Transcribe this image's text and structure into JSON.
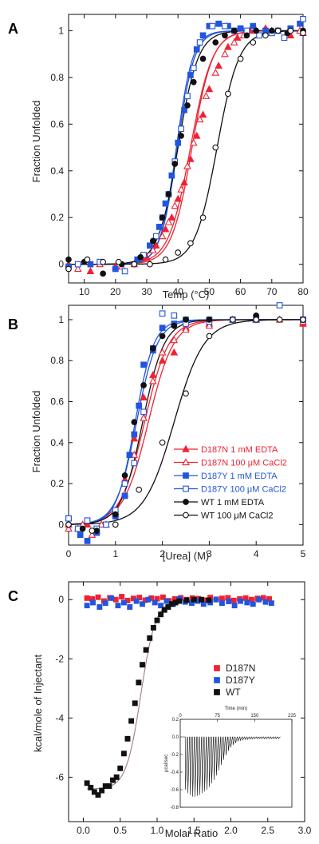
{
  "colors": {
    "red": "#ee2233",
    "blue": "#2255dd",
    "black": "#111111",
    "fit_gray": "#a07a88"
  },
  "chart_data": [
    {
      "panel": "A",
      "type": "scatter",
      "xlabel": "Temp (°C)",
      "ylabel": "Fraction Unfolded",
      "xlim": [
        5,
        80
      ],
      "ylim": [
        -0.08,
        1.07
      ],
      "xticks": [
        10,
        20,
        30,
        40,
        50,
        60,
        70,
        80
      ],
      "yticks": [
        0,
        0.2,
        0.4,
        0.6,
        0.8,
        1
      ],
      "series": [
        {
          "color": "red",
          "marker": "triangle",
          "fill": true,
          "tm": 44.5,
          "w": 3.3,
          "x": [
            5,
            12,
            20,
            26,
            30,
            33,
            36,
            38,
            40,
            42,
            44,
            46,
            48,
            50,
            53,
            56,
            59,
            63,
            68,
            72,
            76,
            80
          ],
          "y": [
            0.0,
            -0.03,
            -0.01,
            0.0,
            0.03,
            0.08,
            0.15,
            0.2,
            0.28,
            0.35,
            0.45,
            0.55,
            0.64,
            0.75,
            0.85,
            0.93,
            0.97,
            1.0,
            1.01,
            1.0,
            0.98,
            0.99
          ]
        },
        {
          "color": "red",
          "marker": "triangle",
          "fill": false,
          "tm": 44.0,
          "w": 3.5,
          "x": [
            8,
            15,
            22,
            28,
            32,
            35,
            37,
            39,
            41,
            43,
            45,
            47,
            49,
            52,
            55,
            58,
            61,
            65,
            70,
            75,
            79
          ],
          "y": [
            -0.02,
            0.0,
            -0.01,
            0.03,
            0.06,
            0.12,
            0.18,
            0.25,
            0.32,
            0.42,
            0.52,
            0.62,
            0.72,
            0.82,
            0.9,
            0.95,
            0.98,
            1.0,
            1.0,
            0.99,
            1.0
          ]
        },
        {
          "color": "blue",
          "marker": "square",
          "fill": true,
          "tm": 39.5,
          "w": 2.6,
          "x": [
            5,
            12,
            20,
            27,
            31,
            34,
            36,
            38,
            40,
            42,
            44,
            46,
            48,
            50,
            53,
            56,
            60,
            64,
            68,
            72,
            76,
            79
          ],
          "y": [
            -0.01,
            0.0,
            -0.02,
            0.02,
            0.08,
            0.16,
            0.26,
            0.38,
            0.52,
            0.66,
            0.81,
            0.92,
            0.98,
            1.02,
            1.03,
            1.02,
            1.01,
            1.02,
            1.0,
            1.0,
            1.01,
            1.03
          ]
        },
        {
          "color": "blue",
          "marker": "square",
          "fill": false,
          "tm": 39.8,
          "w": 2.7,
          "x": [
            8,
            15,
            23,
            29,
            33,
            35,
            37,
            39,
            41,
            43,
            45,
            47,
            51,
            55,
            58,
            62,
            66,
            70,
            74,
            80
          ],
          "y": [
            0.0,
            0.01,
            -0.03,
            0.04,
            0.12,
            0.2,
            0.3,
            0.44,
            0.58,
            0.72,
            0.84,
            0.95,
            1.02,
            1.02,
            1.0,
            1.0,
            0.98,
            0.99,
            0.97,
            1.05
          ]
        },
        {
          "color": "black",
          "marker": "circle",
          "fill": true,
          "tm": 40.0,
          "w": 3.2,
          "x": [
            5,
            10,
            16,
            22,
            28,
            32,
            35,
            37,
            39,
            41,
            43,
            45,
            48,
            52,
            55,
            58,
            62,
            65,
            70,
            75,
            80
          ],
          "y": [
            0.02,
            0.01,
            -0.04,
            0.0,
            0.03,
            0.1,
            0.2,
            0.3,
            0.43,
            0.55,
            0.68,
            0.78,
            0.88,
            0.95,
            0.98,
            1.0,
            0.98,
            1.0,
            1.0,
            0.99,
            1.0
          ]
        },
        {
          "color": "black",
          "marker": "circle",
          "fill": false,
          "tm": 52.5,
          "w": 3.5,
          "x": [
            5,
            11,
            16,
            21,
            26,
            31,
            36,
            40,
            44,
            48,
            52,
            56,
            60,
            64,
            68,
            72,
            76,
            80
          ],
          "y": [
            -0.02,
            0.02,
            0.01,
            0.01,
            0.0,
            0.0,
            0.02,
            0.05,
            0.09,
            0.2,
            0.5,
            0.73,
            0.88,
            0.95,
            0.98,
            1.0,
            1.0,
            0.99
          ]
        }
      ]
    },
    {
      "panel": "B",
      "type": "scatter",
      "xlabel": "[Urea] (M)",
      "ylabel": "Fraction Unfolded",
      "xlim": [
        0,
        5
      ],
      "ylim": [
        -0.1,
        1.07
      ],
      "xticks": [
        0,
        1,
        2,
        3,
        4,
        5
      ],
      "yticks": [
        0,
        0.2,
        0.4,
        0.6,
        0.8,
        1
      ],
      "series": [
        {
          "name": "D187N 1 mM EDTA",
          "color": "red",
          "marker": "triangle",
          "fill": true,
          "c": 1.62,
          "w": 0.26,
          "x": [
            0.0,
            0.2,
            0.4,
            0.6,
            0.8,
            1.0,
            1.2,
            1.4,
            1.6,
            1.8,
            2.0,
            2.25,
            2.5,
            3.0,
            4.0,
            4.5,
            5.0
          ],
          "y": [
            0.0,
            -0.02,
            0.0,
            -0.03,
            0.0,
            0.06,
            0.22,
            0.42,
            0.62,
            0.73,
            0.8,
            0.84,
            0.96,
            0.98,
            1.0,
            1.0,
            0.98
          ]
        },
        {
          "name": "D187N 100 μM CaCl2",
          "color": "red",
          "marker": "triangle",
          "fill": false,
          "c": 1.7,
          "w": 0.27,
          "x": [
            0.0,
            0.3,
            0.5,
            0.7,
            1.0,
            1.2,
            1.4,
            1.6,
            1.8,
            2.0,
            2.25,
            2.5,
            3.0,
            3.5,
            4.0,
            5.0
          ],
          "y": [
            -0.02,
            0.0,
            -0.05,
            0.0,
            0.05,
            0.15,
            0.34,
            0.52,
            0.7,
            0.84,
            0.9,
            0.95,
            0.97,
            1.0,
            1.0,
            0.99
          ]
        },
        {
          "name": "D187Y 1 mM EDTA",
          "color": "blue",
          "marker": "square",
          "fill": true,
          "c": 1.45,
          "w": 0.22,
          "x": [
            0.0,
            0.25,
            0.4,
            0.6,
            0.8,
            1.0,
            1.2,
            1.3,
            1.4,
            1.5,
            1.6,
            1.8,
            2.0,
            2.25,
            2.5,
            3.0,
            4.0,
            5.0
          ],
          "y": [
            0.03,
            -0.05,
            -0.08,
            -0.04,
            0.0,
            0.04,
            0.14,
            0.34,
            0.44,
            0.58,
            0.78,
            0.85,
            0.96,
            0.98,
            1.0,
            1.0,
            1.0,
            1.0
          ]
        },
        {
          "name": "D187Y 100 μM CaCl2",
          "color": "blue",
          "marker": "square",
          "fill": false,
          "c": 1.42,
          "w": 0.2,
          "x": [
            0.0,
            0.2,
            0.4,
            0.6,
            0.8,
            1.0,
            1.2,
            1.4,
            1.6,
            1.8,
            2.0,
            2.25,
            2.5,
            3.0,
            3.5,
            4.0,
            4.5,
            5.0
          ],
          "y": [
            0.03,
            -0.02,
            0.02,
            -0.02,
            0.0,
            0.07,
            0.2,
            0.3,
            0.55,
            0.86,
            1.03,
            1.02,
            0.98,
            0.99,
            1.0,
            1.01,
            1.07,
            1.0
          ]
        },
        {
          "name": "WT 1 mM EDTA",
          "color": "black",
          "marker": "circle",
          "fill": true,
          "c": 1.58,
          "w": 0.23,
          "x": [
            0.0,
            0.3,
            0.6,
            1.0,
            1.2,
            1.4,
            1.6,
            1.8,
            2.0,
            2.25,
            2.5,
            3.0,
            4.0,
            5.0
          ],
          "y": [
            0.0,
            -0.02,
            -0.03,
            0.05,
            0.24,
            0.5,
            0.68,
            0.86,
            0.92,
            0.97,
            1.0,
            1.0,
            1.02,
            1.0
          ]
        },
        {
          "name": "WT 100 μM CaCl2",
          "color": "black",
          "marker": "circle",
          "fill": false,
          "c": 2.25,
          "w": 0.32,
          "x": [
            0.0,
            0.5,
            1.0,
            1.5,
            2.0,
            2.5,
            3.0,
            3.5,
            4.0,
            4.5,
            5.0
          ],
          "y": [
            0.0,
            -0.03,
            0.0,
            0.17,
            0.4,
            0.64,
            0.92,
            1.0,
            1.0,
            1.0,
            1.0
          ]
        }
      ]
    },
    {
      "panel": "C",
      "type": "scatter",
      "xlabel": "Molar Ratio",
      "ylabel": "kcal/mole of Injectant",
      "xlim": [
        -0.2,
        3.0
      ],
      "ylim": [
        -7.5,
        0.6
      ],
      "xticks": [
        0.0,
        0.5,
        1.0,
        1.5,
        2.0,
        2.5,
        3.0
      ],
      "xtick_labels": [
        "0.0",
        "0.5",
        "1.0",
        "1.5",
        "2.0",
        "2.5",
        "3.0"
      ],
      "yticks": [
        0,
        -2,
        -4,
        -6
      ],
      "ytick_labels": [
        "0",
        "-2",
        "-4",
        "-6"
      ],
      "legend": [
        "D187N",
        "D187Y",
        "WT"
      ],
      "fit": {
        "bottom": -6.4,
        "top": 0.0,
        "x0": 0.78,
        "w": 0.1
      },
      "series": [
        {
          "name": "D187N",
          "color": "red",
          "marker": "square",
          "fill": true,
          "x": [
            0.05,
            0.12,
            0.2,
            0.28,
            0.36,
            0.44,
            0.52,
            0.6,
            0.68,
            0.76,
            0.84,
            0.92,
            1.0,
            1.08,
            1.16,
            1.24,
            1.32,
            1.4,
            1.48,
            1.56,
            1.64,
            1.72,
            1.8,
            1.88,
            1.96,
            2.04,
            2.12,
            2.2,
            2.28,
            2.36,
            2.44,
            2.52
          ],
          "y": [
            0.05,
            0.02,
            0.08,
            -0.05,
            0.06,
            0.0,
            0.1,
            -0.03,
            0.04,
            0.07,
            -0.02,
            0.05,
            0.03,
            0.08,
            -0.04,
            0.02,
            0.06,
            0.0,
            0.05,
            0.03,
            -0.02,
            0.07,
            0.01,
            0.04,
            0.06,
            -0.03,
            0.02,
            0.05,
            0.0,
            0.04,
            0.06,
            0.02
          ]
        },
        {
          "name": "D187Y",
          "color": "blue",
          "marker": "square",
          "fill": true,
          "x": [
            0.05,
            0.13,
            0.22,
            0.3,
            0.38,
            0.47,
            0.55,
            0.63,
            0.72,
            0.8,
            0.88,
            0.97,
            1.05,
            1.13,
            1.22,
            1.3,
            1.38,
            1.47,
            1.55,
            1.63,
            1.72,
            1.8,
            1.88,
            1.97,
            2.05,
            2.13,
            2.22,
            2.3,
            2.38,
            2.47,
            2.55
          ],
          "y": [
            -0.2,
            -0.1,
            -0.25,
            -0.12,
            0.05,
            -0.2,
            -0.1,
            -0.25,
            -0.05,
            -0.15,
            0.0,
            -0.1,
            -0.2,
            -0.05,
            -0.15,
            0.02,
            -0.08,
            -0.12,
            -0.05,
            -0.15,
            -0.1,
            0.0,
            -0.12,
            -0.06,
            -0.2,
            -0.05,
            -0.1,
            -0.15,
            0.0,
            -0.08,
            -0.12
          ]
        },
        {
          "name": "WT",
          "color": "black",
          "marker": "square",
          "fill": true,
          "x": [
            0.05,
            0.1,
            0.15,
            0.2,
            0.25,
            0.3,
            0.35,
            0.4,
            0.45,
            0.5,
            0.55,
            0.6,
            0.65,
            0.7,
            0.75,
            0.8,
            0.85,
            0.9,
            0.95,
            1.0,
            1.05,
            1.1,
            1.15,
            1.2,
            1.25,
            1.3,
            1.4,
            1.5,
            1.6,
            1.7
          ],
          "y": [
            -6.2,
            -6.35,
            -6.5,
            -6.6,
            -6.45,
            -6.3,
            -6.3,
            -6.1,
            -6.0,
            -5.7,
            -5.2,
            -4.7,
            -4.1,
            -3.5,
            -2.8,
            -2.2,
            -1.7,
            -1.3,
            -0.95,
            -0.7,
            -0.5,
            -0.35,
            -0.25,
            -0.15,
            -0.1,
            -0.05,
            -0.02,
            0.0,
            0.0,
            -0.02
          ]
        }
      ],
      "inset": {
        "xlabel": "Time (min)",
        "ylabel": "μcal/sec",
        "xlim": [
          0,
          225
        ],
        "ylim": [
          -0.8,
          0.2
        ],
        "xticks": [
          0,
          75,
          150,
          225
        ],
        "yticks": [
          0.2,
          0.0,
          -0.2,
          -0.4,
          -0.6,
          -0.8
        ],
        "ytick_labels": [
          "0.2",
          "0.0",
          "-0.2",
          "-0.4",
          "-0.6",
          "-0.8"
        ],
        "peaks": {
          "start_min": 10,
          "interval_min": 4.8,
          "count": 40,
          "depth_ucal_per_sec": [
            0.6,
            0.64,
            0.66,
            0.68,
            0.68,
            0.67,
            0.66,
            0.64,
            0.62,
            0.6,
            0.57,
            0.53,
            0.49,
            0.44,
            0.38,
            0.32,
            0.26,
            0.21,
            0.16,
            0.12,
            0.09,
            0.07,
            0.05,
            0.04,
            0.035,
            0.03,
            0.03,
            0.025,
            0.025,
            0.02,
            0.02,
            0.02,
            0.02,
            0.02,
            0.02,
            0.02,
            0.02,
            0.02,
            0.02,
            0.02
          ]
        }
      }
    }
  ]
}
